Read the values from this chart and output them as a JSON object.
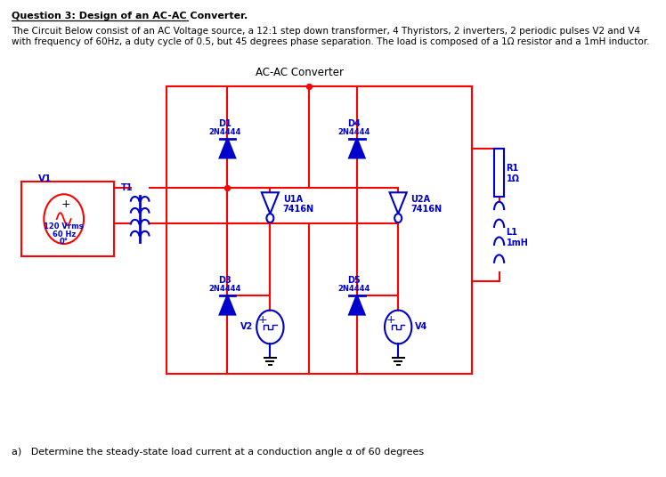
{
  "title": "AC-AC Converter",
  "question_title": "Question 3: Design of an AC-AC Converter.",
  "description_line1": "The Circuit Below consist of an AC Voltage source, a 12:1 step down transformer, 4 Thyristors, 2 inverters, 2 periodic pulses V2 and V4",
  "description_line2": "with frequency of 60Hz, a duty cycle of 0.5, but 45 degrees phase separation. The load is composed of a 1Ω resistor and a 1mH inductor.",
  "footnote": "a)   Determine the steady-state load current at a conduction angle α of 60 degrees",
  "colors": {
    "red": "#FF0000",
    "blue": "#0000CC",
    "black": "#000000",
    "white": "#FFFFFF"
  },
  "fig_width": 7.48,
  "fig_height": 5.36
}
